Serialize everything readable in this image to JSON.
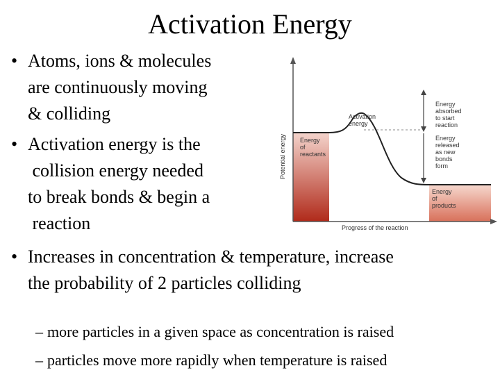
{
  "slide": {
    "title": "Activation Energy",
    "bullets": [
      {
        "lines": [
          "Atoms, ions & molecules",
          "are continuously moving",
          "& colliding"
        ]
      },
      {
        "lines": [
          "Activation energy is the",
          " collision energy needed",
          "to break bonds & begin a",
          " reaction"
        ]
      },
      {
        "lines": [
          "Increases in concentration & temperature, increase",
          "the probability of 2 particles colliding"
        ]
      }
    ],
    "subbullets": [
      "more particles in a given space as concentration is raised",
      "particles move more rapidly when temperature is raised"
    ]
  },
  "figure": {
    "y_axis_label": "Potential energy",
    "x_axis_label": "Progress of the reaction",
    "activation_label": [
      "Activation",
      "energy"
    ],
    "reactants_label": [
      "Energy",
      "of",
      "reactants"
    ],
    "products_label": [
      "Energy",
      "of",
      "products"
    ],
    "absorbed_label": [
      "Energy",
      "absorbed",
      "to start",
      "reaction"
    ],
    "released_label": [
      "Energy",
      "released",
      "as new",
      "bonds",
      "form"
    ],
    "colors": {
      "reactants_dark": "#b02a1a",
      "reactants_light": "#f4d4cc",
      "products_dark": "#d8705a",
      "products_light": "#f6d8ce",
      "axis": "#555555",
      "curve": "#222222"
    }
  }
}
